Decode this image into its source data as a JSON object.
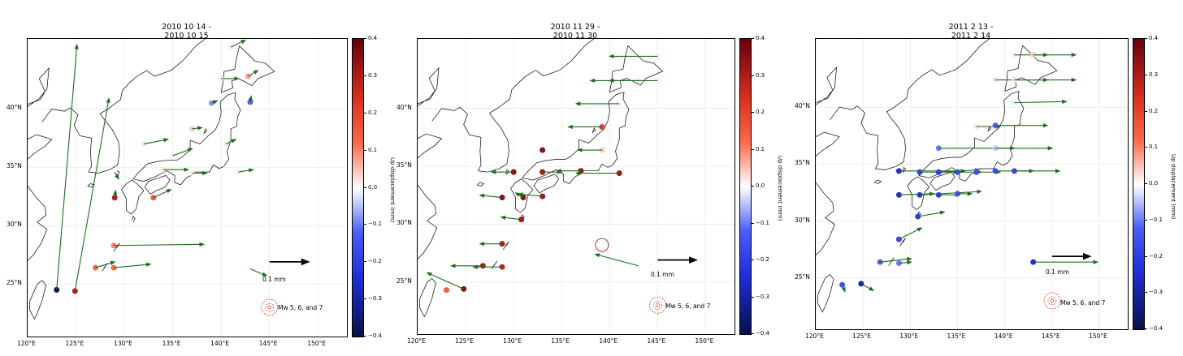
{
  "panels": [
    {
      "title_line1": "2010 10 14 -",
      "title_line2": "2010 10 15"
    },
    {
      "title_line1": "2010 11 29 -",
      "title_line2": "2010 11 30"
    },
    {
      "title_line1": "2011 2 13 -",
      "title_line2": "2011 2 14"
    }
  ],
  "x_ticks": [
    "120°E",
    "125°E",
    "130°E",
    "135°E",
    "140°E",
    "145°E",
    "150°E"
  ],
  "y_ticks": [
    "40°N",
    "35°N",
    "30°N",
    "25°N"
  ],
  "colorbar": {
    "label": "Up displacement (mm)",
    "ticks": [
      "0.4",
      "0.3",
      "0.2",
      "0.1",
      "0.0",
      "−0.1",
      "−0.2",
      "−0.3",
      "−0.4"
    ],
    "range": [
      -0.4,
      0.4
    ],
    "cmap": [
      "#67000d",
      "#fb6a4a",
      "#ffffff",
      "#4a5ef9",
      "#08104a"
    ]
  },
  "scale_label": "0.1 mm",
  "legend_label": "Mw 5, 6, and 7",
  "colors": {
    "arrow": "#1e6b1e",
    "coast": "#000000",
    "quake": "#d73027"
  },
  "stations": [
    [
      {
        "lon": 123.0,
        "lat": 24.5,
        "up": -0.4,
        "de": 2.1,
        "dn": 21.0
      },
      {
        "lon": 124.9,
        "lat": 24.4,
        "up": 0.3,
        "de": 3.5,
        "dn": 16.5
      },
      {
        "lon": 127.0,
        "lat": 26.4,
        "up": 0.12,
        "de": 2.0,
        "dn": 0.5
      },
      {
        "lon": 128.9,
        "lat": 26.4,
        "up": 0.12,
        "de": 3.8,
        "dn": 0.3
      },
      {
        "lon": 128.9,
        "lat": 28.3,
        "up": 0.1,
        "de": 9.3,
        "dn": 0.1
      },
      {
        "lon": 129.0,
        "lat": 32.4,
        "up": 0.3,
        "de": 0.1,
        "dn": 0.6
      },
      {
        "lon": 133.0,
        "lat": 32.4,
        "up": 0.15,
        "de": 1.8,
        "dn": 0.7
      },
      {
        "lon": 137.0,
        "lat": 38.3,
        "up": 0.05,
        "de": 1.0,
        "dn": 0.1
      },
      {
        "lon": 139.0,
        "lat": 40.5,
        "up": -0.08,
        "de": 0.6,
        "dn": 0.2
      },
      {
        "lon": 143.0,
        "lat": 40.6,
        "up": -0.12,
        "de": 0.1,
        "dn": 0.5
      },
      {
        "lon": 142.8,
        "lat": 42.8,
        "up": 0.08,
        "de": 1.0,
        "dn": 0.5
      },
      {
        "lon": 143.0,
        "lat": 26.3,
        "up": 0.0,
        "de": 1.7,
        "dn": -0.6
      },
      {
        "lon": 132.0,
        "lat": 37.0,
        "up": 0.02,
        "de": 2.5,
        "dn": 0.4
      },
      {
        "lon": 135.0,
        "lat": 36.0,
        "up": 0.02,
        "de": 2.0,
        "dn": 0.6
      },
      {
        "lon": 134.0,
        "lat": 34.8,
        "up": 0.02,
        "de": 2.6,
        "dn": 0.0
      },
      {
        "lon": 137.0,
        "lat": 34.5,
        "up": 0.02,
        "de": 1.5,
        "dn": 0.0
      },
      {
        "lon": 140.5,
        "lat": 37.0,
        "up": 0.02,
        "de": 1.0,
        "dn": 0.4
      },
      {
        "lon": 141.8,
        "lat": 34.6,
        "up": 0.02,
        "de": 1.5,
        "dn": 0.2
      },
      {
        "lon": 141.0,
        "lat": 45.3,
        "up": 0.02,
        "de": 1.5,
        "dn": 0.6
      },
      {
        "lon": 140.0,
        "lat": 42.6,
        "up": 0.02,
        "de": 1.8,
        "dn": 0.0
      },
      {
        "lon": 129.0,
        "lat": 34.6,
        "up": 0.0,
        "de": 0.4,
        "dn": -0.6
      }
    ],
    [
      {
        "lon": 123.0,
        "lat": 24.3,
        "up": 0.15,
        "de": 0.0,
        "dn": 0.0
      },
      {
        "lon": 124.8,
        "lat": 24.4,
        "up": 0.35,
        "de": -3.8,
        "dn": 1.4
      },
      {
        "lon": 126.8,
        "lat": 26.4,
        "up": 0.3,
        "de": -3.3,
        "dn": 0.0
      },
      {
        "lon": 128.8,
        "lat": 26.3,
        "up": 0.28,
        "de": -3.0,
        "dn": 0.0
      },
      {
        "lon": 128.8,
        "lat": 28.3,
        "up": 0.3,
        "de": -2.3,
        "dn": 0.0
      },
      {
        "lon": 130.8,
        "lat": 30.4,
        "up": 0.32,
        "de": -2.1,
        "dn": 0.2
      },
      {
        "lon": 128.8,
        "lat": 32.3,
        "up": 0.35,
        "de": -2.3,
        "dn": 0.2
      },
      {
        "lon": 131.0,
        "lat": 32.3,
        "up": 0.35,
        "de": -0.8,
        "dn": 0.4
      },
      {
        "lon": 133.0,
        "lat": 32.4,
        "up": 0.32,
        "de": -2.5,
        "dn": 0.2
      },
      {
        "lon": 130.0,
        "lat": 34.5,
        "up": 0.35,
        "de": -2.3,
        "dn": 0.0
      },
      {
        "lon": 133.0,
        "lat": 34.5,
        "up": 0.32,
        "de": 2.0,
        "dn": 0.0
      },
      {
        "lon": 137.0,
        "lat": 34.6,
        "up": 0.32,
        "de": -2.5,
        "dn": 0.0
      },
      {
        "lon": 141.0,
        "lat": 34.4,
        "up": 0.32,
        "de": -4.5,
        "dn": 0.0
      },
      {
        "lon": 133.0,
        "lat": 36.4,
        "up": 0.35,
        "de": 0.0,
        "dn": 0.0
      },
      {
        "lon": 139.2,
        "lat": 36.4,
        "up": 0.05,
        "de": -2.5,
        "dn": 0.0
      },
      {
        "lon": 139.2,
        "lat": 38.4,
        "up": 0.2,
        "de": -3.5,
        "dn": 0.0
      },
      {
        "lon": 141.0,
        "lat": 40.4,
        "up": 0.02,
        "de": -4.5,
        "dn": 0.0
      },
      {
        "lon": 143.0,
        "lat": 42.4,
        "up": 0.02,
        "de": -5.0,
        "dn": 0.0
      },
      {
        "lon": 145.0,
        "lat": 44.5,
        "up": 0.02,
        "de": -5.0,
        "dn": 0.0
      },
      {
        "lon": 145.0,
        "lat": 42.4,
        "up": 0.02,
        "de": -5.0,
        "dn": 0.0
      },
      {
        "lon": 143.0,
        "lat": 26.4,
        "up": 0.0,
        "de": -4.5,
        "dn": 1.0
      }
    ],
    [
      {
        "lon": 122.8,
        "lat": 24.4,
        "up": -0.15,
        "de": 0.3,
        "dn": -0.6
      },
      {
        "lon": 124.8,
        "lat": 24.5,
        "up": -0.3,
        "de": 1.3,
        "dn": -0.6
      },
      {
        "lon": 126.8,
        "lat": 26.4,
        "up": -0.12,
        "de": 3.3,
        "dn": 0.3
      },
      {
        "lon": 128.8,
        "lat": 26.3,
        "up": -0.1,
        "de": 1.3,
        "dn": 0.1
      },
      {
        "lon": 128.8,
        "lat": 28.4,
        "up": -0.18,
        "de": 2.4,
        "dn": 1.0
      },
      {
        "lon": 130.8,
        "lat": 30.4,
        "up": -0.2,
        "de": 2.8,
        "dn": 0.4
      },
      {
        "lon": 128.8,
        "lat": 32.3,
        "up": -0.25,
        "de": 3.7,
        "dn": 0.1
      },
      {
        "lon": 131.0,
        "lat": 32.3,
        "up": -0.22,
        "de": 6.5,
        "dn": 0.3
      },
      {
        "lon": 133.0,
        "lat": 32.3,
        "up": -0.2,
        "de": 2.2,
        "dn": 0.0
      },
      {
        "lon": 135.0,
        "lat": 32.4,
        "up": -0.15,
        "de": 1.5,
        "dn": 0.0
      },
      {
        "lon": 128.8,
        "lat": 34.4,
        "up": -0.25,
        "de": 7.0,
        "dn": 0.0
      },
      {
        "lon": 131.0,
        "lat": 34.3,
        "up": -0.2,
        "de": 4.0,
        "dn": 0.0
      },
      {
        "lon": 133.0,
        "lat": 34.3,
        "up": -0.2,
        "de": 4.3,
        "dn": 0.2
      },
      {
        "lon": 135.0,
        "lat": 34.3,
        "up": -0.18,
        "de": 2.5,
        "dn": 0.0
      },
      {
        "lon": 137.0,
        "lat": 34.3,
        "up": -0.15,
        "de": 2.5,
        "dn": 0.0
      },
      {
        "lon": 139.0,
        "lat": 34.4,
        "up": -0.15,
        "de": 6.8,
        "dn": 0.0
      },
      {
        "lon": 141.0,
        "lat": 34.4,
        "up": -0.18,
        "de": 2.0,
        "dn": 0.0
      },
      {
        "lon": 133.0,
        "lat": 36.4,
        "up": -0.1,
        "de": 8.0,
        "dn": 0.0
      },
      {
        "lon": 139.0,
        "lat": 36.4,
        "up": -0.05,
        "de": 6.0,
        "dn": 0.0
      },
      {
        "lon": 137.0,
        "lat": 38.3,
        "up": 0.03,
        "de": 2.5,
        "dn": 0.0
      },
      {
        "lon": 139.0,
        "lat": 38.4,
        "up": -0.12,
        "de": 5.5,
        "dn": 0.0
      },
      {
        "lon": 141.0,
        "lat": 40.4,
        "up": 0.02,
        "de": 5.5,
        "dn": 0.1
      },
      {
        "lon": 139.0,
        "lat": 42.4,
        "up": 0.03,
        "de": 5.5,
        "dn": 0.0
      },
      {
        "lon": 141.0,
        "lat": 42.4,
        "up": 0.03,
        "de": 6.5,
        "dn": 0.0
      },
      {
        "lon": 141.0,
        "lat": 44.6,
        "up": 0.02,
        "de": 3.5,
        "dn": 0.0
      },
      {
        "lon": 143.0,
        "lat": 44.6,
        "up": 0.05,
        "de": 4.5,
        "dn": 0.0
      },
      {
        "lon": 143.0,
        "lat": 26.4,
        "up": -0.25,
        "de": 6.8,
        "dn": 0.0
      }
    ]
  ],
  "earthquakes": [
    [],
    [
      {
        "lon": 139.2,
        "lat": 28.2,
        "mag": 7
      }
    ],
    []
  ]
}
